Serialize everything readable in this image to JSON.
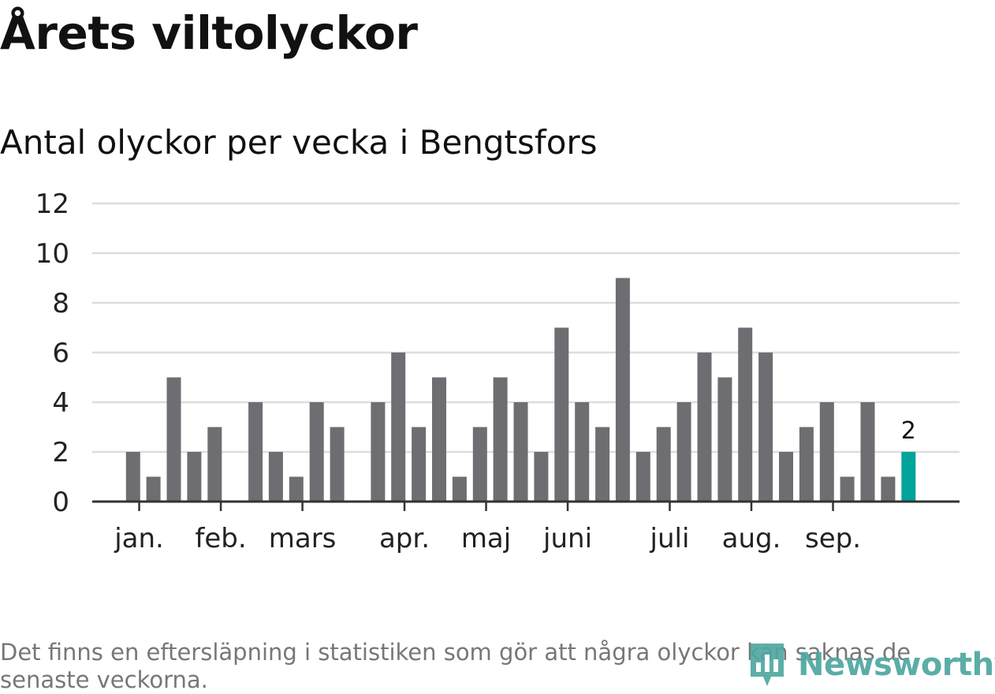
{
  "title": "Årets viltolyckor",
  "subtitle": "Antal olyckor per vecka i Bengtsfors",
  "footnote": "Det finns en eftersläpning i statistiken som gör att några olyckor kan saknas de senaste veckorna.",
  "brand": {
    "name": "Newsworthy",
    "logo_icon": "newsworthy-logo-icon"
  },
  "colors": {
    "bar": "#6e6d72",
    "highlight": "#00a499",
    "grid": "#dddddd",
    "axis": "#333333"
  },
  "chart_data": {
    "type": "bar",
    "x": [
      1,
      2,
      3,
      4,
      5,
      7,
      8,
      9,
      10,
      11,
      13,
      14,
      15,
      16,
      17,
      18,
      19,
      20,
      21,
      22,
      23,
      24,
      25,
      26,
      27,
      28,
      29,
      30,
      31,
      32,
      33,
      34,
      35,
      36,
      37,
      38,
      39
    ],
    "values": [
      2,
      1,
      5,
      2,
      3,
      4,
      2,
      1,
      4,
      3,
      4,
      6,
      3,
      5,
      1,
      3,
      5,
      4,
      2,
      7,
      4,
      3,
      9,
      2,
      3,
      4,
      6,
      5,
      7,
      6,
      2,
      3,
      4,
      1,
      4,
      1,
      2
    ],
    "highlight_last": true,
    "data_labels": [
      {
        "x": 39,
        "text": "2"
      }
    ],
    "xlim": [
      -1,
      41.5
    ],
    "ylim": [
      0,
      12
    ],
    "yticks": [
      0,
      2,
      4,
      6,
      8,
      10,
      12
    ],
    "xticks": [
      {
        "x": 1.3,
        "label": "jan."
      },
      {
        "x": 5.3,
        "label": "feb."
      },
      {
        "x": 9.3,
        "label": "mars"
      },
      {
        "x": 14.3,
        "label": "apr."
      },
      {
        "x": 18.3,
        "label": "maj"
      },
      {
        "x": 22.3,
        "label": "juni"
      },
      {
        "x": 27.3,
        "label": "juli"
      },
      {
        "x": 31.3,
        "label": "aug."
      },
      {
        "x": 35.3,
        "label": "sep."
      }
    ],
    "grid": true,
    "xlabel": "",
    "ylabel": ""
  }
}
